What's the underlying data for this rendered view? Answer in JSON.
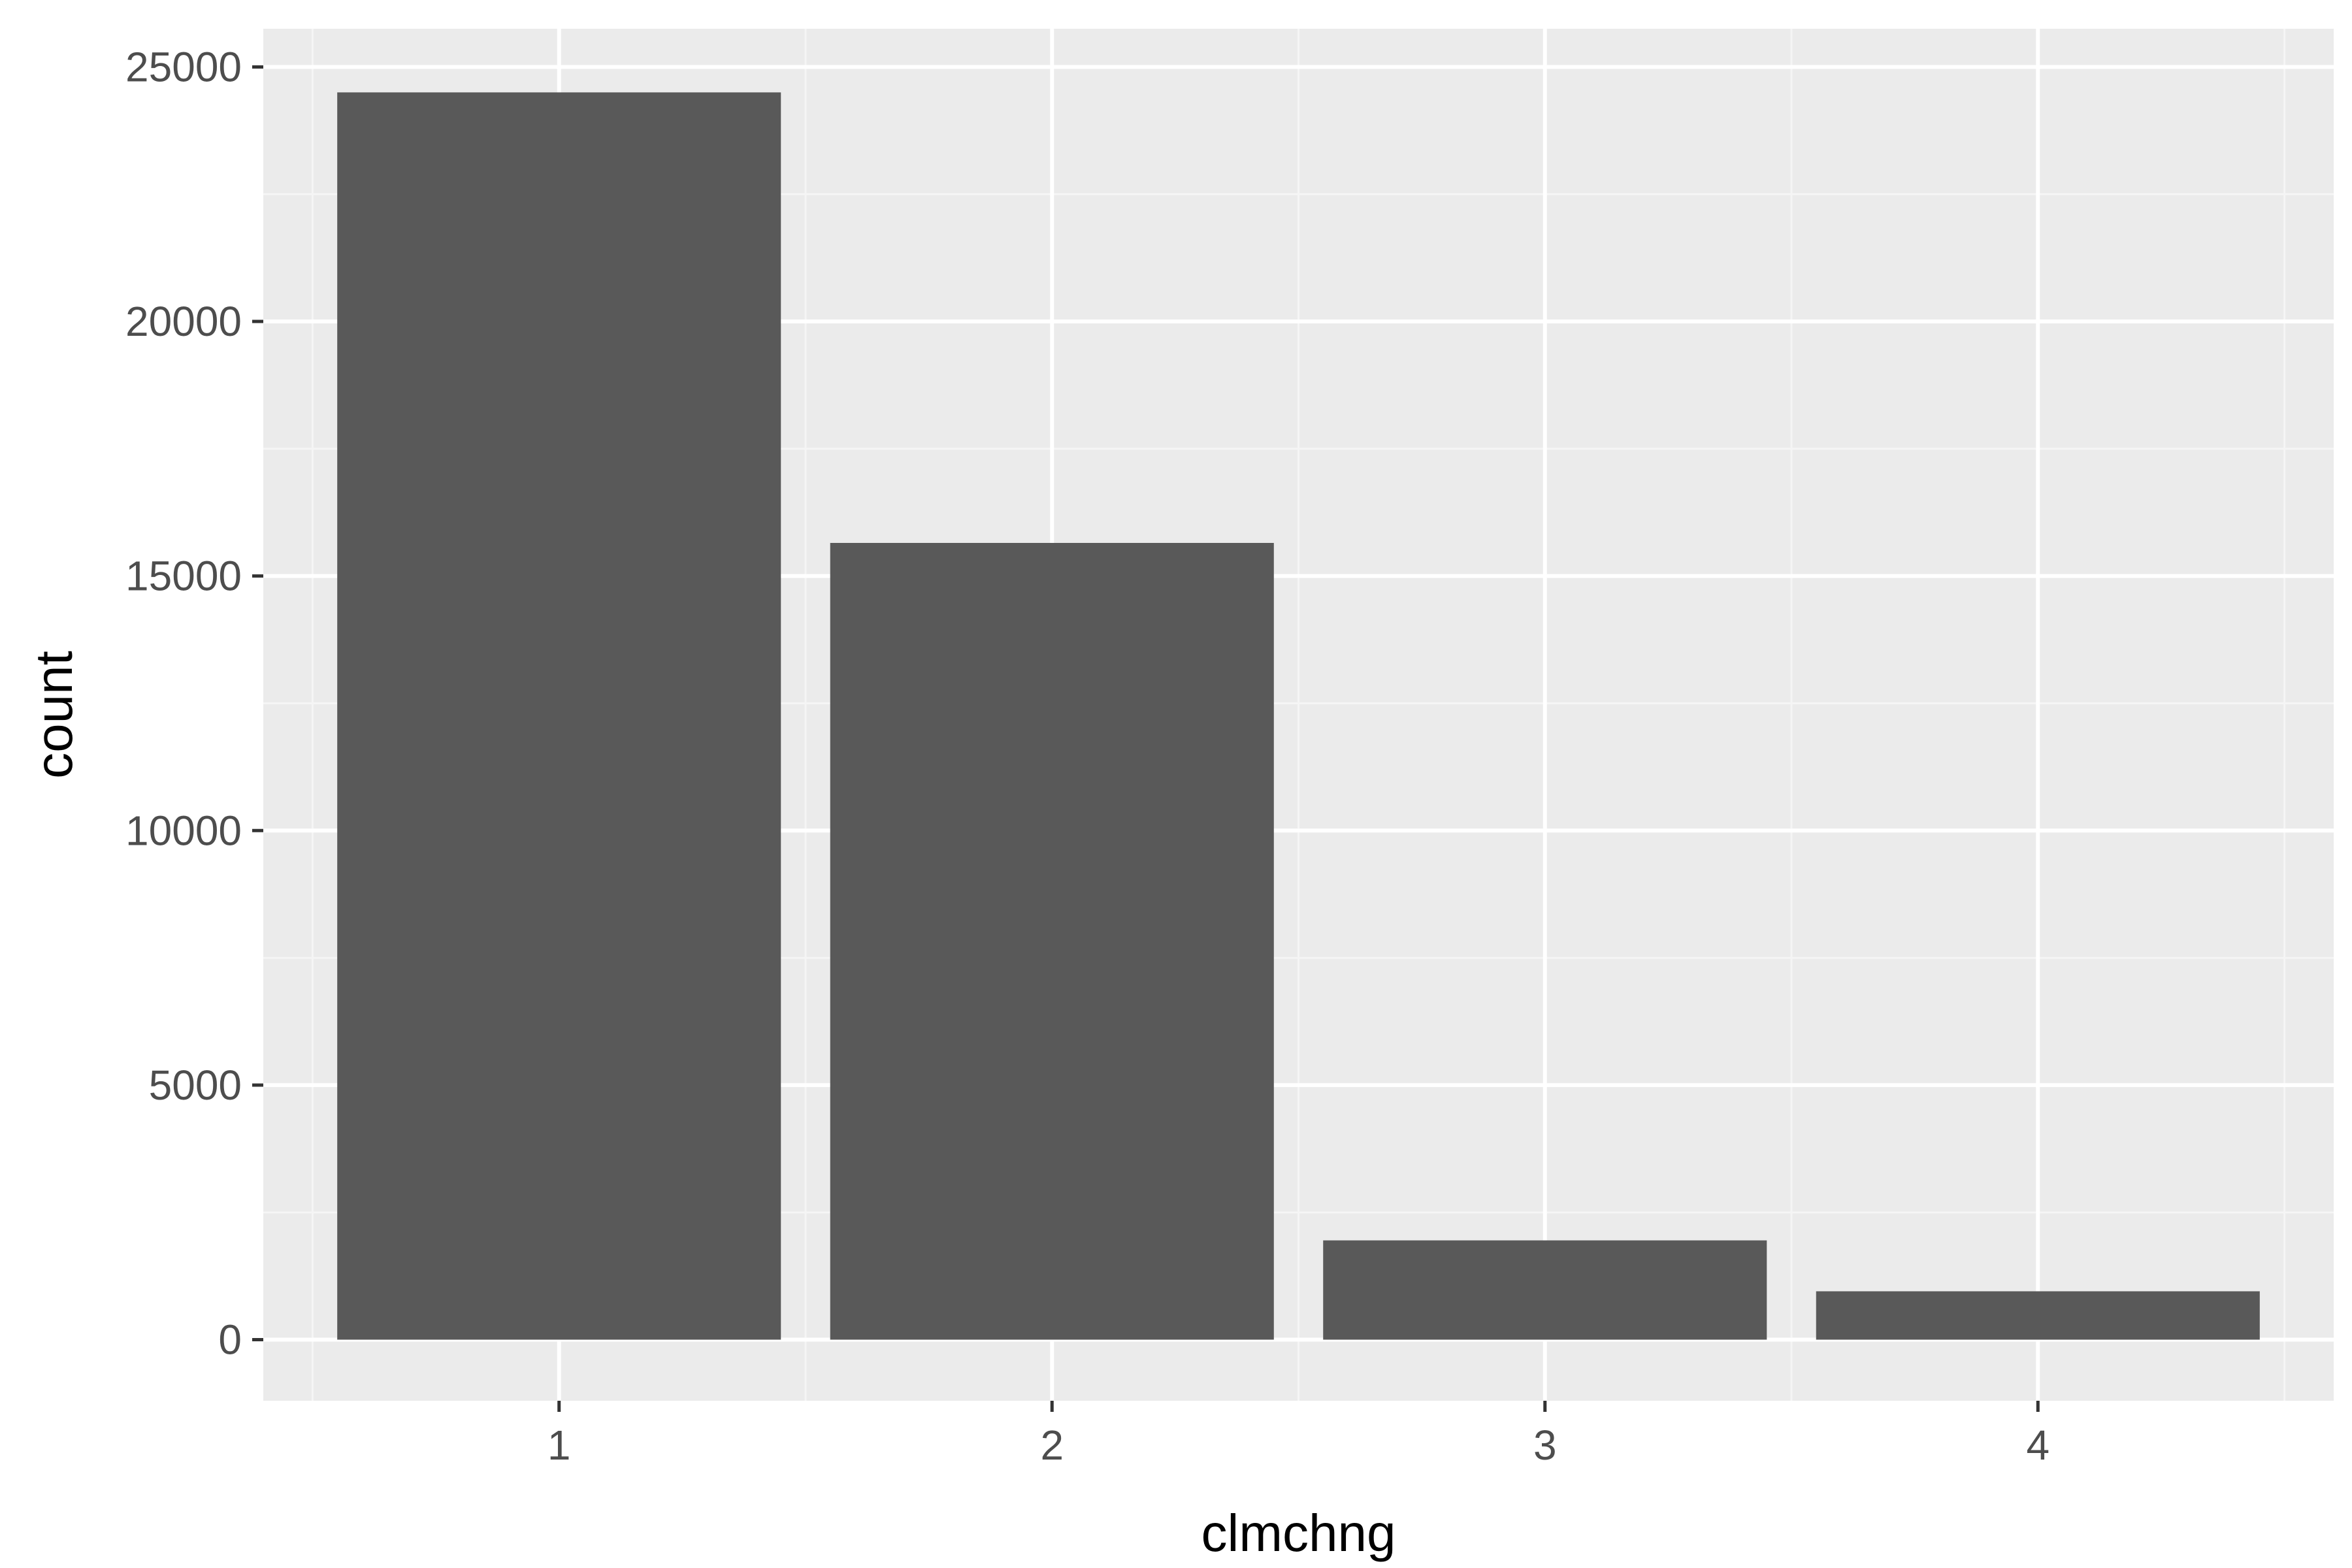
{
  "chart_data": {
    "type": "bar",
    "categories": [
      "1",
      "2",
      "3",
      "4"
    ],
    "values": [
      24500,
      15650,
      1950,
      950
    ],
    "xlabel": "clmchng",
    "ylabel": "count",
    "ylim": [
      -1200,
      25750
    ],
    "y_ticks": [
      0,
      5000,
      10000,
      15000,
      20000,
      25000
    ],
    "y_tick_labels": [
      "0",
      "5000",
      "10000",
      "15000",
      "20000",
      "25000"
    ],
    "grid": true,
    "legend": "none",
    "colors": {
      "panel_background": "#ebebeb",
      "grid_major": "#ffffff",
      "grid_minor": "#f5f5f5",
      "bar_fill": "#595959",
      "tick_text": "#4d4d4d",
      "tick_mark": "#333333",
      "title_text": "#000000"
    }
  }
}
